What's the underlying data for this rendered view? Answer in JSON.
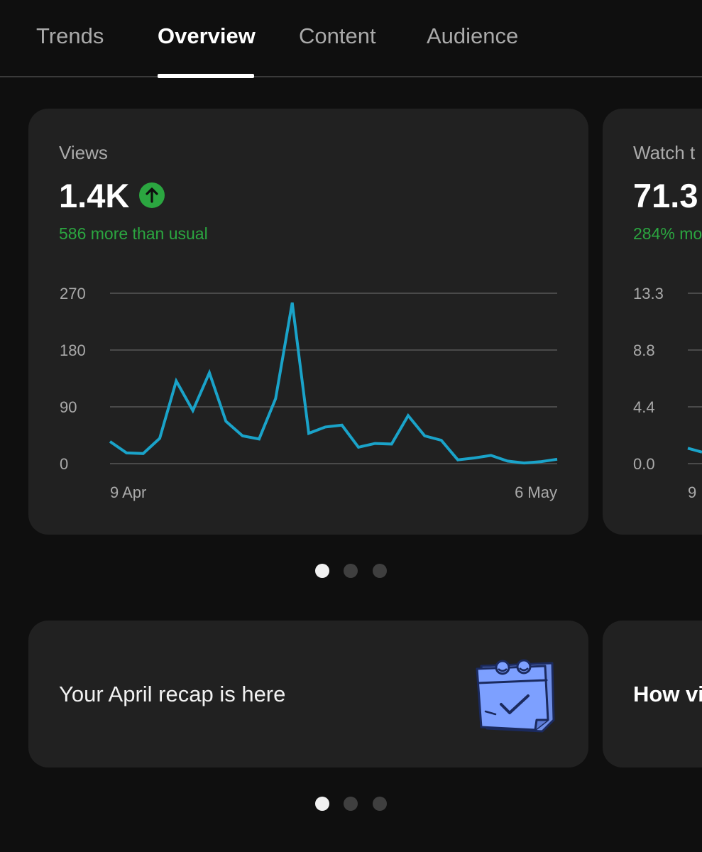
{
  "tabs": [
    {
      "label": "Trends",
      "active": false
    },
    {
      "label": "Overview",
      "active": true
    },
    {
      "label": "Content",
      "active": false
    },
    {
      "label": "Audience",
      "active": false
    }
  ],
  "cards": {
    "views": {
      "label": "Views",
      "value": "1.4K",
      "trend_icon": "arrow-up-circle-icon",
      "sub": "586 more than usual",
      "colors": {
        "line": "#1aa3c9",
        "positive": "#2ba640"
      }
    },
    "watch_time": {
      "label": "Watch t",
      "value": "71.3",
      "sub": "284% mo"
    }
  },
  "chart_data": [
    {
      "type": "line",
      "ylim": [
        0,
        270
      ],
      "y_ticks": [
        "270",
        "180",
        "90",
        "0"
      ],
      "x_tick_labels": [
        "9 Apr",
        "6 May"
      ],
      "x": [
        "9 Apr",
        "10 Apr",
        "11 Apr",
        "12 Apr",
        "13 Apr",
        "14 Apr",
        "15 Apr",
        "16 Apr",
        "17 Apr",
        "18 Apr",
        "19 Apr",
        "20 Apr",
        "21 Apr",
        "22 Apr",
        "23 Apr",
        "24 Apr",
        "25 Apr",
        "26 Apr",
        "27 Apr",
        "28 Apr",
        "29 Apr",
        "30 Apr",
        "1 May",
        "2 May",
        "3 May",
        "4 May",
        "5 May",
        "6 May"
      ],
      "series": [
        {
          "values": [
            35,
            17,
            16,
            40,
            131,
            84,
            144,
            67,
            44,
            39,
            103,
            255,
            48,
            58,
            61,
            26,
            32,
            31,
            76,
            44,
            37,
            6,
            9,
            13,
            4,
            1,
            3,
            7
          ]
        }
      ],
      "grid": true
    },
    {
      "type": "line",
      "y_ticks": [
        "13.3",
        "8.8",
        "4.4",
        "0.0"
      ],
      "x_tick_labels": [
        "9"
      ],
      "series": [
        {
          "values": [
            1.2,
            0.9
          ]
        }
      ],
      "grid": true
    }
  ],
  "pager_top": {
    "count": 3,
    "active": 0
  },
  "recap": {
    "text": "Your April recap is here",
    "icon": "calendar-check-icon",
    "peek_text": "How vi"
  },
  "pager_bottom": {
    "count": 3,
    "active": 0
  }
}
